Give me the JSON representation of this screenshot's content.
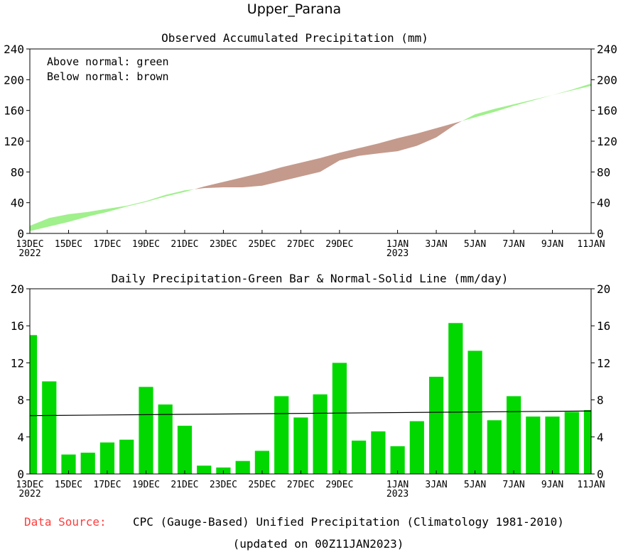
{
  "figure_title": "Upper_Parana",
  "footer": {
    "source_label": "Data Source:",
    "source_text": "CPC (Gauge-Based) Unified Precipitation (Climatology 1981-2010)",
    "updated": "(updated on 00Z11JAN2023)"
  },
  "colors": {
    "above": "#a0f08c",
    "below": "#c49a8c",
    "bar": "#00d800",
    "source_label": "#ff3c3c"
  },
  "chart_data": [
    {
      "type": "area",
      "title": "Observed Accumulated Precipitation (mm)",
      "legend": [
        "Above normal: green",
        "Below normal: brown"
      ],
      "legend_position": "top-left",
      "ylim": [
        0,
        240
      ],
      "yticks": [
        0,
        40,
        80,
        120,
        160,
        200,
        240
      ],
      "day_range": [
        0,
        29
      ],
      "xticks": [
        {
          "day": 0,
          "label": "13DEC",
          "sub": "2022"
        },
        {
          "day": 2,
          "label": "15DEC"
        },
        {
          "day": 4,
          "label": "17DEC"
        },
        {
          "day": 6,
          "label": "19DEC"
        },
        {
          "day": 8,
          "label": "21DEC"
        },
        {
          "day": 10,
          "label": "23DEC"
        },
        {
          "day": 12,
          "label": "25DEC"
        },
        {
          "day": 14,
          "label": "27DEC"
        },
        {
          "day": 16,
          "label": "29DEC"
        },
        {
          "day": 19,
          "label": "1JAN",
          "sub": "2023"
        },
        {
          "day": 21,
          "label": "3JAN"
        },
        {
          "day": 23,
          "label": "5JAN"
        },
        {
          "day": 25,
          "label": "7JAN"
        },
        {
          "day": 27,
          "label": "9JAN"
        },
        {
          "day": 29,
          "label": "11JAN"
        }
      ],
      "x": [
        0,
        1,
        2,
        3,
        4,
        5,
        6,
        7,
        8,
        9,
        10,
        11,
        12,
        13,
        14,
        15,
        16,
        17,
        18,
        19,
        20,
        21,
        22,
        23,
        24,
        25,
        26,
        27,
        28,
        29
      ],
      "observed": [
        10,
        20,
        25,
        28,
        32,
        36,
        42,
        50,
        56,
        59,
        60,
        60,
        62,
        68,
        74,
        80,
        95,
        101,
        104,
        107,
        114,
        125,
        142,
        155,
        162,
        168,
        174,
        180,
        186,
        192
      ],
      "normal": [
        3,
        9,
        15,
        22,
        28,
        35,
        41,
        48,
        54,
        61,
        67,
        73,
        79,
        86,
        92,
        98,
        105,
        111,
        117,
        124,
        130,
        137,
        144,
        151,
        158,
        166,
        173,
        180,
        187,
        195
      ]
    },
    {
      "type": "bar",
      "title": "Daily Precipitation-Green Bar & Normal-Solid Line (mm/day)",
      "ylim": [
        0,
        20
      ],
      "yticks": [
        0,
        4,
        8,
        12,
        16,
        20
      ],
      "day_range": [
        0,
        29
      ],
      "xticks": [
        {
          "day": 0,
          "label": "13DEC",
          "sub": "2022"
        },
        {
          "day": 2,
          "label": "15DEC"
        },
        {
          "day": 4,
          "label": "17DEC"
        },
        {
          "day": 6,
          "label": "19DEC"
        },
        {
          "day": 8,
          "label": "21DEC"
        },
        {
          "day": 10,
          "label": "23DEC"
        },
        {
          "day": 12,
          "label": "25DEC"
        },
        {
          "day": 14,
          "label": "27DEC"
        },
        {
          "day": 16,
          "label": "29DEC"
        },
        {
          "day": 19,
          "label": "1JAN",
          "sub": "2023"
        },
        {
          "day": 21,
          "label": "3JAN"
        },
        {
          "day": 23,
          "label": "5JAN"
        },
        {
          "day": 25,
          "label": "7JAN"
        },
        {
          "day": 27,
          "label": "9JAN"
        },
        {
          "day": 29,
          "label": "11JAN"
        }
      ],
      "categories": [
        "13DEC",
        "14DEC",
        "15DEC",
        "16DEC",
        "17DEC",
        "18DEC",
        "19DEC",
        "20DEC",
        "21DEC",
        "22DEC",
        "23DEC",
        "24DEC",
        "25DEC",
        "26DEC",
        "27DEC",
        "28DEC",
        "29DEC",
        "30DEC",
        "31DEC",
        "1JAN",
        "2JAN",
        "3JAN",
        "4JAN",
        "5JAN",
        "6JAN",
        "7JAN",
        "8JAN",
        "9JAN",
        "10JAN",
        "11JAN"
      ],
      "values": [
        15.0,
        10.0,
        2.1,
        2.3,
        3.4,
        3.7,
        9.4,
        7.5,
        5.2,
        0.9,
        0.7,
        1.4,
        2.5,
        8.4,
        6.1,
        8.6,
        12.0,
        3.6,
        4.6,
        3.0,
        5.7,
        10.5,
        16.3,
        13.3,
        5.8,
        8.4,
        6.2,
        6.2,
        6.7,
        6.9
      ],
      "normal_line": [
        6.3,
        6.8
      ]
    }
  ]
}
